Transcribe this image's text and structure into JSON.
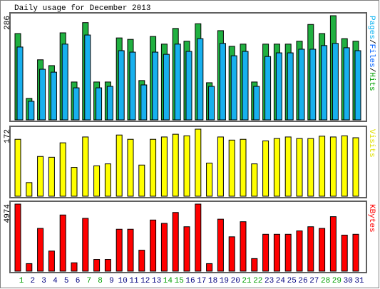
{
  "title": "Daily usage for December 2013",
  "chart_data": [
    {
      "type": "bar",
      "ylim": [
        0,
        286
      ],
      "yticks": [
        286
      ],
      "legend": [
        {
          "text": "Pages",
          "color": "#00b0f0"
        },
        {
          "text": "/",
          "color": "#000000"
        },
        {
          "text": "Files",
          "color": "#0060ff"
        },
        {
          "text": "/",
          "color": "#000000"
        },
        {
          "text": "Hits",
          "color": "#00a000"
        }
      ],
      "series": [
        {
          "name": "Hits",
          "color": "#20b040",
          "values": [
            237,
            59,
            165,
            149,
            239,
            104,
            267,
            104,
            104,
            225,
            221,
            108,
            229,
            208,
            251,
            216,
            264,
            102,
            245,
            202,
            208,
            104,
            208,
            208,
            208,
            216,
            262,
            237,
            286,
            223,
            216
          ]
        },
        {
          "name": "Files",
          "color": "#18b0ee",
          "values": [
            200,
            51,
            139,
            131,
            208,
            88,
            233,
            88,
            92,
            190,
            186,
            96,
            186,
            180,
            208,
            188,
            223,
            92,
            210,
            176,
            188,
            92,
            174,
            184,
            184,
            194,
            194,
            204,
            210,
            198,
            190
          ]
        }
      ]
    },
    {
      "type": "bar",
      "ylim": [
        0,
        172
      ],
      "yticks": [
        172
      ],
      "legend": [
        {
          "text": "Visits",
          "color": "#e0e000"
        }
      ],
      "series": [
        {
          "name": "Visits",
          "color": "#ffff00",
          "values": [
            146,
            35,
            102,
            100,
            137,
            74,
            152,
            78,
            83,
            157,
            146,
            80,
            146,
            152,
            159,
            155,
            172,
            85,
            152,
            144,
            146,
            83,
            142,
            148,
            152,
            148,
            148,
            154,
            152,
            155,
            150
          ]
        }
      ]
    },
    {
      "type": "bar",
      "ylim": [
        0,
        4974
      ],
      "yticks": [
        4974
      ],
      "legend": [
        {
          "text": "KBytes",
          "color": "#ff0000"
        }
      ],
      "series": [
        {
          "name": "KBytes",
          "color": "#ff0000",
          "values": [
            4974,
            560,
            3171,
            1492,
            4166,
            622,
            3917,
            871,
            871,
            3109,
            3109,
            1555,
            3793,
            3544,
            4352,
            3295,
            4974,
            560,
            3855,
            2549,
            3668,
            933,
            2736,
            2736,
            2736,
            2985,
            3295,
            3171,
            4042,
            2674,
            2736
          ]
        }
      ],
      "categories": [
        "1",
        "2",
        "3",
        "4",
        "5",
        "6",
        "7",
        "8",
        "9",
        "10",
        "11",
        "12",
        "13",
        "14",
        "15",
        "16",
        "17",
        "18",
        "19",
        "20",
        "21",
        "22",
        "23",
        "24",
        "25",
        "26",
        "27",
        "28",
        "29",
        "30",
        "31"
      ],
      "category_colors": [
        "#00a000",
        "#000080",
        "#000080",
        "#000080",
        "#000080",
        "#000080",
        "#00a000",
        "#00a000",
        "#000080",
        "#000080",
        "#000080",
        "#000080",
        "#000080",
        "#00a000",
        "#00a000",
        "#000080",
        "#000080",
        "#000080",
        "#000080",
        "#000080",
        "#00a000",
        "#00a000",
        "#000080",
        "#000080",
        "#000080",
        "#000080",
        "#000080",
        "#00a000",
        "#00a000",
        "#000080",
        "#000080"
      ]
    }
  ]
}
